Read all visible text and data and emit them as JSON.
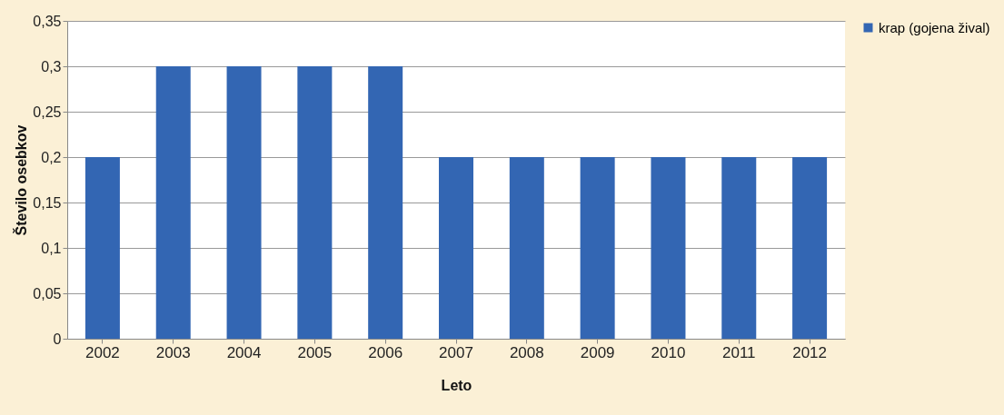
{
  "chart_data": {
    "type": "bar",
    "xlabel": "Leto",
    "ylabel": "Število osebkov",
    "categories": [
      "2002",
      "2003",
      "2004",
      "2005",
      "2006",
      "2007",
      "2008",
      "2009",
      "2010",
      "2011",
      "2012"
    ],
    "series": [
      {
        "name": "krap (gojena žival)",
        "color": "#3366b3",
        "values": [
          0.2,
          0.3,
          0.3,
          0.3,
          0.3,
          0.2,
          0.2,
          0.2,
          0.2,
          0.2,
          0.2
        ]
      }
    ],
    "ylim": [
      0,
      0.35
    ],
    "yticks": [
      0,
      {
        "value": 0.05,
        "label": "0,05"
      },
      {
        "value": 0.1,
        "label": "0,1"
      },
      {
        "value": 0.15,
        "label": "0,15"
      },
      {
        "value": 0.2,
        "label": "0,2"
      },
      {
        "value": 0.25,
        "label": "0,25"
      },
      {
        "value": 0.3,
        "label": "0,3"
      },
      {
        "value": 0.35,
        "label": "0,35"
      }
    ],
    "grid": "y",
    "legend": "right"
  }
}
